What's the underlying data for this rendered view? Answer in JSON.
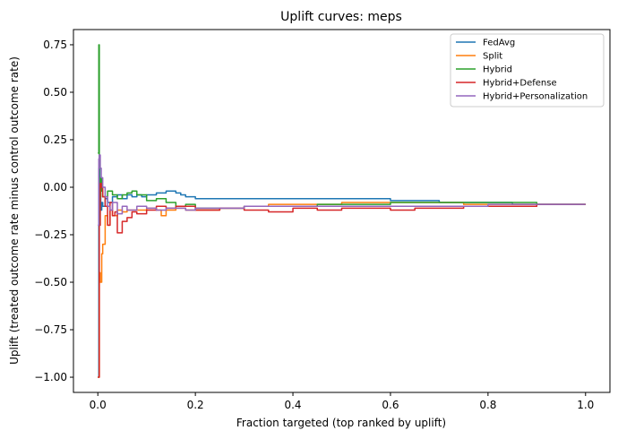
{
  "chart_data": {
    "type": "line",
    "title": "Uplift curves: meps",
    "xlabel": "Fraction targeted (top ranked by uplift)",
    "ylabel": "Uplift (treated outcome rate minus control outcome rate)",
    "xlim": [
      -0.05,
      1.05
    ],
    "ylim": [
      -1.08,
      0.83
    ],
    "xticks": [
      0.0,
      0.2,
      0.4,
      0.6,
      0.8,
      1.0
    ],
    "xtick_labels": [
      "0.0",
      "0.2",
      "0.4",
      "0.6",
      "0.8",
      "1.0"
    ],
    "yticks": [
      -1.0,
      -0.75,
      -0.5,
      -0.25,
      0.0,
      0.25,
      0.5,
      0.75
    ],
    "ytick_labels": [
      "−1.00",
      "−0.75",
      "−0.50",
      "−0.25",
      "0.00",
      "0.25",
      "0.50",
      "0.75"
    ],
    "grid": false,
    "legend_position": "top-right",
    "series": [
      {
        "name": "FedAvg",
        "color": "#1f77b4",
        "x": [
          0.0,
          0.002,
          0.004,
          0.006,
          0.008,
          0.01,
          0.015,
          0.02,
          0.03,
          0.04,
          0.05,
          0.06,
          0.07,
          0.08,
          0.09,
          0.1,
          0.11,
          0.12,
          0.13,
          0.14,
          0.15,
          0.16,
          0.17,
          0.18,
          0.2,
          0.22,
          0.25,
          0.3,
          0.35,
          0.4,
          0.45,
          0.5,
          0.55,
          0.6,
          0.65,
          0.7,
          0.75,
          0.8,
          0.85,
          0.9,
          0.95,
          1.0
        ],
        "y": [
          -1.0,
          0.1,
          -0.05,
          -0.12,
          -0.08,
          -0.1,
          -0.06,
          -0.08,
          -0.05,
          -0.04,
          -0.06,
          -0.04,
          -0.05,
          -0.04,
          -0.05,
          -0.04,
          -0.04,
          -0.03,
          -0.03,
          -0.02,
          -0.02,
          -0.03,
          -0.04,
          -0.05,
          -0.06,
          -0.06,
          -0.06,
          -0.06,
          -0.06,
          -0.06,
          -0.06,
          -0.06,
          -0.06,
          -0.07,
          -0.07,
          -0.08,
          -0.08,
          -0.08,
          -0.09,
          -0.09,
          -0.09,
          -0.09
        ]
      },
      {
        "name": "Split",
        "color": "#ff7f0e",
        "x": [
          0.0,
          0.003,
          0.005,
          0.008,
          0.01,
          0.015,
          0.02,
          0.025,
          0.03,
          0.04,
          0.05,
          0.06,
          0.08,
          0.1,
          0.12,
          0.13,
          0.14,
          0.16,
          0.18,
          0.2,
          0.25,
          0.3,
          0.35,
          0.4,
          0.45,
          0.5,
          0.55,
          0.6,
          0.65,
          0.7,
          0.75,
          0.8,
          0.85,
          0.9,
          0.95,
          1.0
        ],
        "y": [
          -1.0,
          -0.45,
          -0.5,
          -0.35,
          -0.3,
          -0.15,
          -0.2,
          -0.12,
          -0.15,
          -0.12,
          -0.13,
          -0.12,
          -0.12,
          -0.11,
          -0.12,
          -0.15,
          -0.12,
          -0.11,
          -0.12,
          -0.12,
          -0.11,
          -0.1,
          -0.09,
          -0.09,
          -0.09,
          -0.08,
          -0.08,
          -0.08,
          -0.08,
          -0.08,
          -0.09,
          -0.09,
          -0.09,
          -0.09,
          -0.09,
          -0.09
        ]
      },
      {
        "name": "Hybrid",
        "color": "#2ca02c",
        "x": [
          0.0,
          0.002,
          0.003,
          0.004,
          0.006,
          0.008,
          0.01,
          0.015,
          0.02,
          0.03,
          0.04,
          0.05,
          0.06,
          0.07,
          0.08,
          0.1,
          0.12,
          0.14,
          0.16,
          0.18,
          0.2,
          0.25,
          0.3,
          0.35,
          0.4,
          0.45,
          0.5,
          0.55,
          0.6,
          0.65,
          0.7,
          0.75,
          0.8,
          0.85,
          0.9,
          0.95,
          1.0
        ],
        "y": [
          0.18,
          0.75,
          -0.2,
          -0.05,
          0.05,
          -0.02,
          -0.05,
          -0.05,
          -0.02,
          -0.04,
          -0.06,
          -0.04,
          -0.03,
          -0.02,
          -0.04,
          -0.07,
          -0.06,
          -0.08,
          -0.1,
          -0.09,
          -0.11,
          -0.11,
          -0.1,
          -0.1,
          -0.1,
          -0.09,
          -0.09,
          -0.09,
          -0.08,
          -0.08,
          -0.08,
          -0.08,
          -0.08,
          -0.08,
          -0.09,
          -0.09,
          -0.09
        ]
      },
      {
        "name": "Hybrid+Defense",
        "color": "#d62728",
        "x": [
          0.0,
          0.003,
          0.005,
          0.007,
          0.01,
          0.015,
          0.02,
          0.025,
          0.03,
          0.035,
          0.04,
          0.05,
          0.06,
          0.07,
          0.08,
          0.1,
          0.12,
          0.14,
          0.16,
          0.18,
          0.2,
          0.25,
          0.3,
          0.35,
          0.4,
          0.45,
          0.5,
          0.55,
          0.6,
          0.65,
          0.7,
          0.75,
          0.8,
          0.85,
          0.9,
          0.95,
          1.0
        ],
        "y": [
          -1.0,
          -0.2,
          0.02,
          0.0,
          -0.05,
          -0.1,
          -0.2,
          -0.08,
          -0.15,
          -0.13,
          -0.24,
          -0.18,
          -0.16,
          -0.13,
          -0.14,
          -0.12,
          -0.1,
          -0.11,
          -0.1,
          -0.1,
          -0.12,
          -0.11,
          -0.12,
          -0.13,
          -0.11,
          -0.12,
          -0.11,
          -0.11,
          -0.12,
          -0.11,
          -0.11,
          -0.1,
          -0.1,
          -0.1,
          -0.09,
          -0.09,
          -0.09
        ]
      },
      {
        "name": "Hybrid+Personalization",
        "color": "#9467bd",
        "x": [
          0.0,
          0.002,
          0.003,
          0.005,
          0.007,
          0.01,
          0.015,
          0.02,
          0.025,
          0.03,
          0.04,
          0.05,
          0.06,
          0.08,
          0.1,
          0.12,
          0.14,
          0.16,
          0.18,
          0.2,
          0.25,
          0.3,
          0.35,
          0.4,
          0.45,
          0.5,
          0.55,
          0.6,
          0.65,
          0.7,
          0.75,
          0.8,
          0.85,
          0.9,
          0.95,
          1.0
        ],
        "y": [
          -0.2,
          0.15,
          0.17,
          0.1,
          0.05,
          0.0,
          -0.05,
          -0.1,
          -0.12,
          -0.08,
          -0.14,
          -0.1,
          -0.12,
          -0.1,
          -0.11,
          -0.12,
          -0.11,
          -0.11,
          -0.12,
          -0.11,
          -0.11,
          -0.1,
          -0.1,
          -0.1,
          -0.1,
          -0.1,
          -0.1,
          -0.1,
          -0.1,
          -0.1,
          -0.1,
          -0.09,
          -0.09,
          -0.09,
          -0.09,
          -0.09
        ]
      }
    ]
  }
}
